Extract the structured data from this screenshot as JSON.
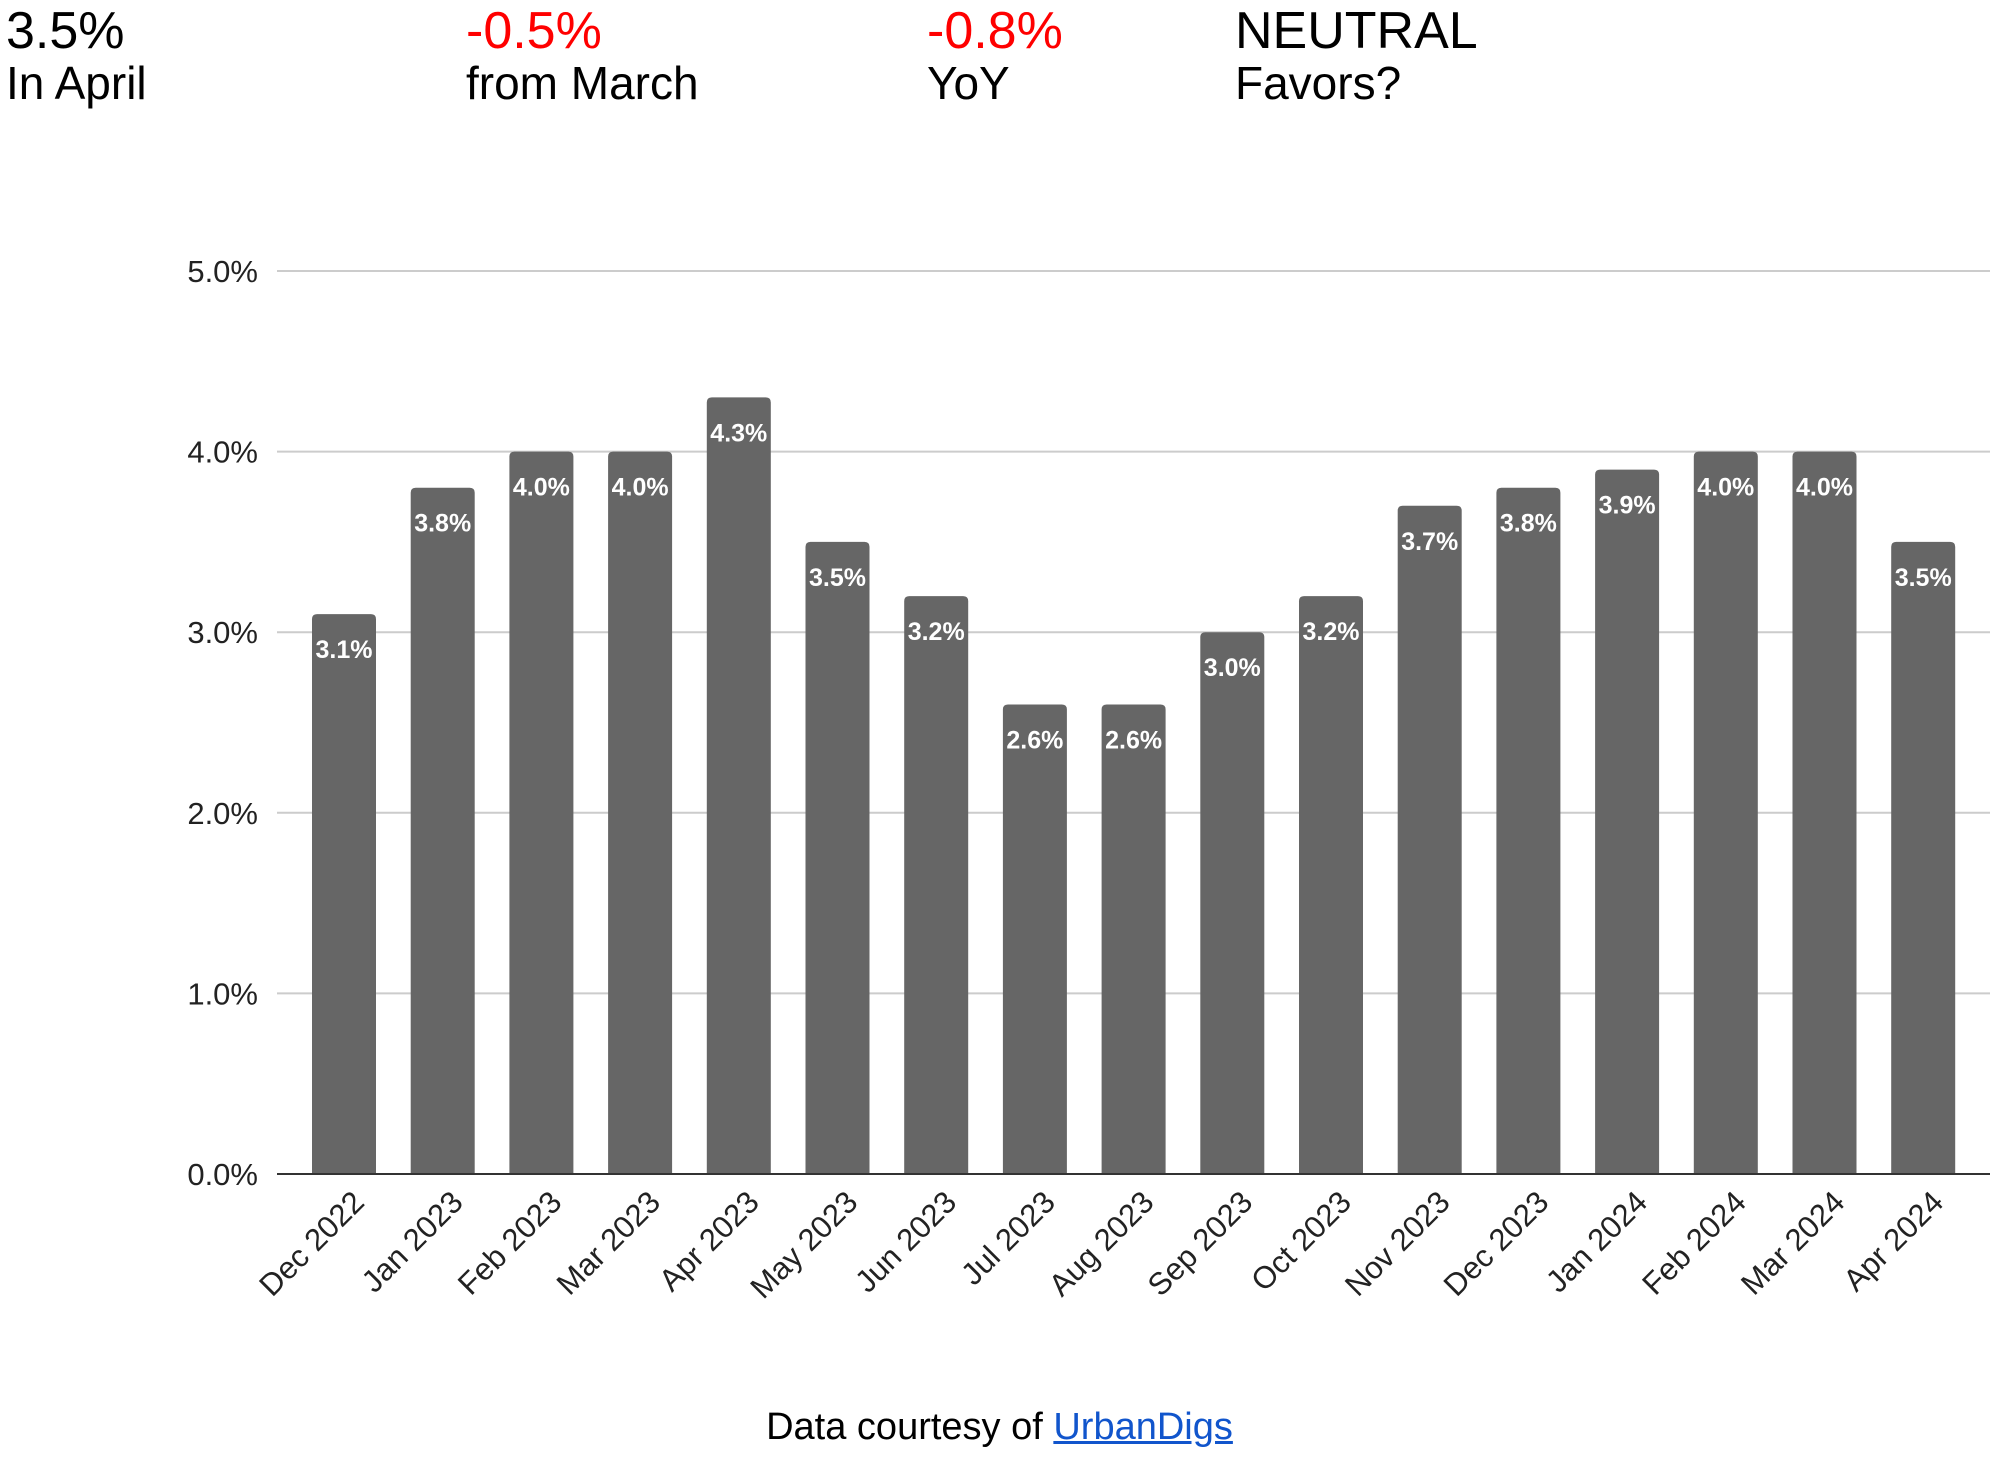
{
  "stats": [
    {
      "value": "3.5%",
      "caption": "In April",
      "value_color": "#000000"
    },
    {
      "value": "-0.5%",
      "caption": "from March",
      "value_color": "#ff0000"
    },
    {
      "value": "-0.8%",
      "caption": "YoY",
      "value_color": "#ff0000"
    },
    {
      "value": "NEUTRAL",
      "caption": "Favors?",
      "value_color": "#000000"
    }
  ],
  "chart_data": {
    "type": "bar",
    "title": "",
    "xlabel": "",
    "ylabel": "",
    "ylim": [
      0,
      5
    ],
    "y_ticks": [
      "0.0%",
      "1.0%",
      "2.0%",
      "3.0%",
      "4.0%",
      "5.0%"
    ],
    "grid": true,
    "bar_color": "#666666",
    "categories": [
      "Dec 2022",
      "Jan 2023",
      "Feb 2023",
      "Mar 2023",
      "Apr 2023",
      "May 2023",
      "Jun 2023",
      "Jul 2023",
      "Aug 2023",
      "Sep 2023",
      "Oct 2023",
      "Nov 2023",
      "Dec 2023",
      "Jan 2024",
      "Feb 2024",
      "Mar 2024",
      "Apr 2024"
    ],
    "values": [
      3.1,
      3.8,
      4.0,
      4.0,
      4.3,
      3.5,
      3.2,
      2.6,
      2.6,
      3.0,
      3.2,
      3.7,
      3.8,
      3.9,
      4.0,
      4.0,
      3.5
    ],
    "data_labels": [
      "3.1%",
      "3.8%",
      "4.0%",
      "4.0%",
      "4.3%",
      "3.5%",
      "3.2%",
      "2.6%",
      "2.6%",
      "3.0%",
      "3.2%",
      "3.7%",
      "3.8%",
      "3.9%",
      "4.0%",
      "4.0%",
      "3.5%"
    ]
  },
  "footer": {
    "prefix": "Data courtesy of",
    "link_text": "UrbanDigs",
    "link_color": "#1155cc"
  }
}
